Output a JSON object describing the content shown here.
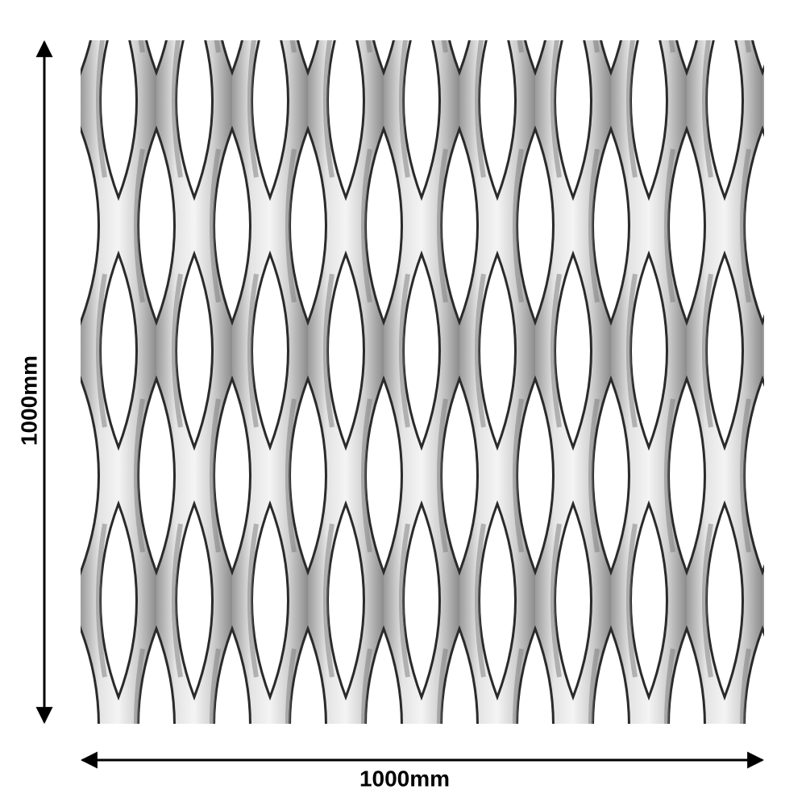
{
  "dimensions": {
    "height": {
      "label": "1000mm"
    },
    "width": {
      "label": "1000mm"
    }
  }
}
